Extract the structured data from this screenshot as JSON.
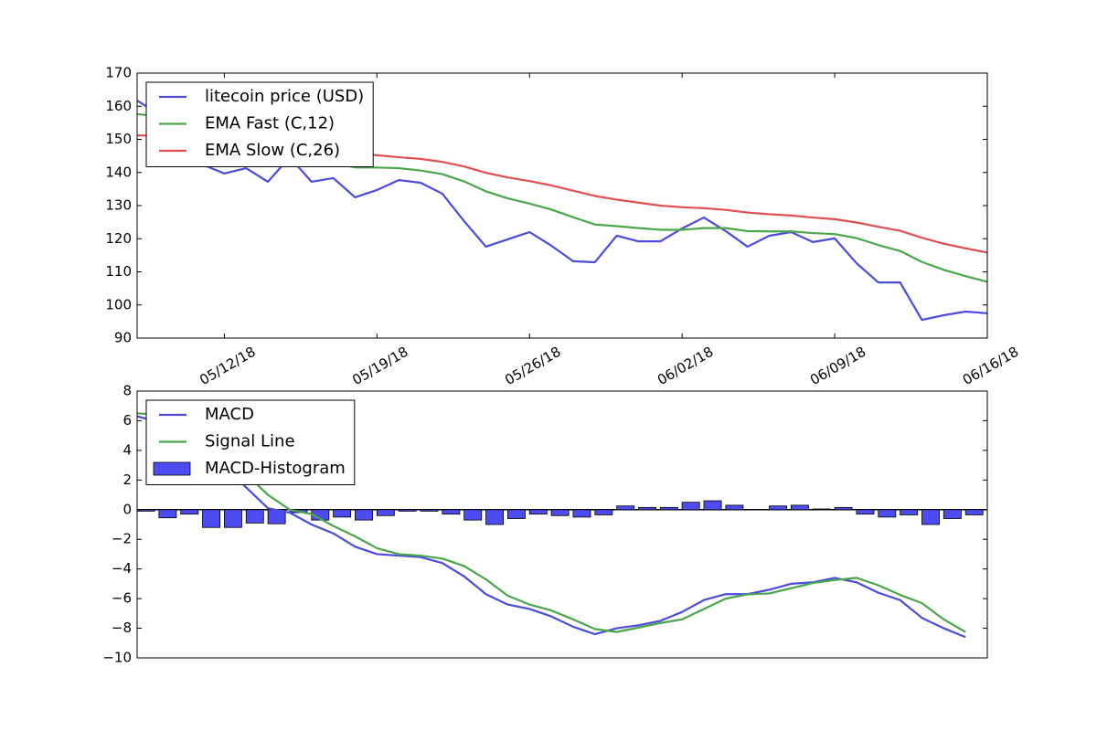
{
  "chart_data": [
    {
      "type": "line",
      "x": [
        "05/08/18",
        "05/09/18",
        "05/10/18",
        "05/11/18",
        "05/12/18",
        "05/13/18",
        "05/14/18",
        "05/15/18",
        "05/16/18",
        "05/17/18",
        "05/18/18",
        "05/19/18",
        "05/20/18",
        "05/21/18",
        "05/22/18",
        "05/23/18",
        "05/24/18",
        "05/25/18",
        "05/26/18",
        "05/27/18",
        "05/28/18",
        "05/29/18",
        "05/30/18",
        "05/31/18",
        "06/01/18",
        "06/02/18",
        "06/03/18",
        "06/04/18",
        "06/05/18",
        "06/06/18",
        "06/07/18",
        "06/08/18",
        "06/09/18",
        "06/10/18",
        "06/11/18",
        "06/12/18",
        "06/13/18",
        "06/14/18",
        "06/15/18",
        "06/16/18"
      ],
      "xlim": [
        "05/08/18",
        "06/16/18"
      ],
      "xticks": [
        "05/12/18",
        "05/19/18",
        "05/26/18",
        "06/02/18",
        "06/09/18",
        "06/16/18"
      ],
      "ylim": [
        90,
        170
      ],
      "yticks": [
        90,
        100,
        110,
        120,
        130,
        140,
        150,
        160,
        170
      ],
      "legend": "upper left",
      "series": [
        {
          "name": "litecoin price (USD)",
          "color": "#4b4bdc",
          "values": [
            161.7,
            157.6,
            150,
            142.4,
            139.7,
            141.3,
            137.2,
            144.6,
            137.2,
            138.3,
            132.5,
            134.7,
            137.7,
            136.9,
            133.6,
            125.3,
            117.6,
            119.8,
            122,
            117.9,
            113.2,
            112.9,
            120.9,
            119.2,
            119.2,
            123.1,
            126.4,
            122.3,
            117.6,
            120.9,
            122,
            119,
            120.1,
            112.6,
            106.8,
            106.8,
            95.5,
            96.9,
            98,
            97.5
          ]
        },
        {
          "name": "EMA Fast (C,12)",
          "color": "#4aa64a",
          "values": [
            157.6,
            157,
            156,
            153,
            150,
            148,
            146,
            145.5,
            144,
            143,
            141.5,
            141.5,
            141.3,
            140.6,
            139.5,
            137.3,
            134.3,
            132.2,
            130.6,
            128.8,
            126.5,
            124.3,
            123.8,
            123.2,
            122.7,
            122.7,
            123.2,
            123.2,
            122.3,
            122.2,
            122.2,
            121.7,
            121.4,
            120.2,
            118.1,
            116.3,
            113,
            110.6,
            108.7,
            107
          ]
        },
        {
          "name": "EMA Slow (C,26)",
          "color": "#e05050",
          "values": [
            151.2,
            151,
            150.8,
            150,
            149.2,
            148.6,
            147.9,
            147.6,
            147,
            146.5,
            145.8,
            145.2,
            144.6,
            144.1,
            143.2,
            141.8,
            139.9,
            138.5,
            137.4,
            136.1,
            134.5,
            132.9,
            131.8,
            130.9,
            130,
            129.5,
            129.2,
            128.7,
            127.9,
            127.4,
            127,
            126.4,
            125.9,
            124.9,
            123.6,
            122.4,
            120.3,
            118.5,
            117.1,
            115.8
          ]
        }
      ]
    },
    {
      "type": "line",
      "x": [
        "05/08/18",
        "05/09/18",
        "05/10/18",
        "05/11/18",
        "05/12/18",
        "05/13/18",
        "05/14/18",
        "05/15/18",
        "05/16/18",
        "05/17/18",
        "05/18/18",
        "05/19/18",
        "05/20/18",
        "05/21/18",
        "05/22/18",
        "05/23/18",
        "05/24/18",
        "05/25/18",
        "05/26/18",
        "05/27/18",
        "05/28/18",
        "05/29/18",
        "05/30/18",
        "05/31/18",
        "06/01/18",
        "06/02/18",
        "06/03/18",
        "06/04/18",
        "06/05/18",
        "06/06/18",
        "06/07/18",
        "06/08/18",
        "06/09/18",
        "06/10/18",
        "06/11/18",
        "06/12/18",
        "06/13/18",
        "06/14/18",
        "06/15/18"
      ],
      "xlim": [
        "05/08/18",
        "06/16/18"
      ],
      "ylim": [
        -10,
        8
      ],
      "yticks": [
        {
          "value": -10,
          "label": "−10"
        },
        {
          "value": -8,
          "label": "−8"
        },
        {
          "value": -6,
          "label": "−6"
        },
        {
          "value": -4,
          "label": "−4"
        },
        {
          "value": -2,
          "label": "−2"
        },
        0,
        2,
        4,
        6,
        8
      ],
      "legend": "upper left",
      "series": [
        {
          "name": "MACD",
          "color": "#4b4bdc",
          "values": [
            6.3,
            5.9,
            5.2,
            4.3,
            2.9,
            1.5,
            0.1,
            -0.2,
            -1.0,
            -1.6,
            -2.5,
            -3.0,
            -3.1,
            -3.2,
            -3.6,
            -4.5,
            -5.7,
            -6.4,
            -6.7,
            -7.2,
            -7.9,
            -8.4,
            -8.0,
            -7.8,
            -7.5,
            -6.9,
            -6.1,
            -5.7,
            -5.7,
            -5.4,
            -5.0,
            -4.9,
            -4.6,
            -4.9,
            -5.6,
            -6.1,
            -7.3,
            -8.0,
            -8.6
          ]
        },
        {
          "name": "Signal Line",
          "color": "#4aa64a",
          "values": [
            6.5,
            6.4,
            5.5,
            5.5,
            4.1,
            2.4,
            1.0,
            0.0,
            -0.3,
            -1.1,
            -1.8,
            -2.6,
            -3.0,
            -3.1,
            -3.3,
            -3.8,
            -4.7,
            -5.8,
            -6.4,
            -6.8,
            -7.4,
            -8.05,
            -8.25,
            -7.95,
            -7.65,
            -7.4,
            -6.7,
            -6.0,
            -5.72,
            -5.65,
            -5.3,
            -4.95,
            -4.75,
            -4.6,
            -5.1,
            -5.75,
            -6.3,
            -7.4,
            -8.25
          ]
        },
        {
          "name": "MACD-Histogram",
          "color": "#4c4cf0",
          "type": "bar",
          "values": [
            -0.1,
            -0.55,
            -0.3,
            -1.2,
            -1.2,
            -0.9,
            -0.95,
            -0.2,
            -0.7,
            -0.5,
            -0.7,
            -0.4,
            -0.1,
            -0.1,
            -0.3,
            -0.7,
            -1.0,
            -0.6,
            -0.3,
            -0.4,
            -0.5,
            -0.35,
            0.25,
            0.15,
            0.15,
            0.5,
            0.6,
            0.3,
            0.02,
            0.25,
            0.3,
            0.05,
            0.15,
            -0.3,
            -0.5,
            -0.35,
            -1.0,
            -0.6,
            -0.35
          ]
        }
      ]
    }
  ]
}
